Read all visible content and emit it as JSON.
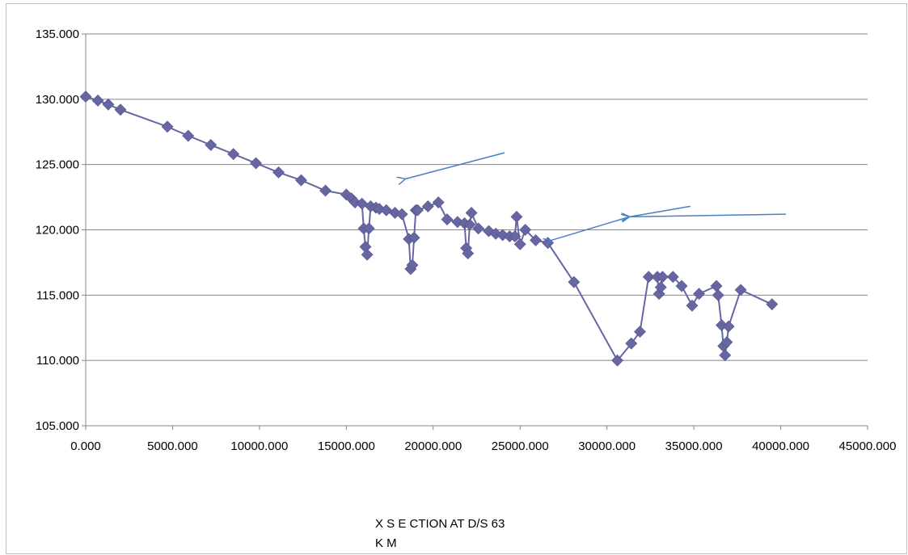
{
  "chart_data": {
    "type": "scatter",
    "title": "",
    "xlabel_lines": [
      "X S E CTION AT D/S 63",
      "K M"
    ],
    "ylabel": "",
    "xlim": [
      0,
      45000
    ],
    "ylim": [
      105,
      135
    ],
    "xticks": [
      "0.000",
      "5000.000",
      "10000.000",
      "15000.000",
      "20000.000",
      "25000.000",
      "30000.000",
      "35000.000",
      "40000.000",
      "45000.000"
    ],
    "yticks": [
      "105.000",
      "110.000",
      "115.000",
      "120.000",
      "125.000",
      "130.000",
      "135.000"
    ],
    "grid": "horizontal",
    "legend": "none",
    "colors": {
      "series": "#6666a3",
      "arrow": "#4a7fc1",
      "grid": "#868686"
    },
    "series": [
      {
        "x": [
          0,
          700,
          1300,
          2000,
          4700,
          5900,
          7200,
          8500,
          9800,
          11100,
          12400,
          13800,
          15000,
          15300,
          15500,
          15900,
          16000,
          16100,
          16200,
          16300,
          16400,
          16700,
          16900,
          17300,
          17800,
          18200,
          18600,
          18700,
          18800,
          18900,
          19000,
          19100,
          19700,
          20300,
          20800,
          21400,
          21800,
          21900,
          22000,
          22100,
          22200,
          22600,
          23200,
          23600,
          24000,
          24400,
          24700,
          24800,
          25000,
          25300,
          25900,
          26600,
          28100,
          30600,
          31400,
          31900,
          32400,
          32900,
          33000,
          33100,
          33200,
          33800,
          34300,
          34900,
          35300,
          36300,
          36400,
          36600,
          36700,
          36800,
          36900,
          37000,
          37700,
          39500
        ],
        "y": [
          130.2,
          129.9,
          129.6,
          129.2,
          127.9,
          127.2,
          126.5,
          125.8,
          125.1,
          124.4,
          123.8,
          123.0,
          122.7,
          122.4,
          122.1,
          122.0,
          120.1,
          118.7,
          118.1,
          120.1,
          121.8,
          121.7,
          121.6,
          121.5,
          121.3,
          121.2,
          119.3,
          117.0,
          117.3,
          119.4,
          121.5,
          121.5,
          121.8,
          122.1,
          120.8,
          120.6,
          120.5,
          118.6,
          118.2,
          120.4,
          121.3,
          120.1,
          119.9,
          119.7,
          119.6,
          119.5,
          119.5,
          121.0,
          118.9,
          120.0,
          119.2,
          119.0,
          116.0,
          110.0,
          111.3,
          112.2,
          116.4,
          116.4,
          115.1,
          115.6,
          116.4,
          116.4,
          115.7,
          114.2,
          115.1,
          115.7,
          115.0,
          112.7,
          111.1,
          110.4,
          111.4,
          112.6,
          115.4,
          114.3
        ]
      }
    ],
    "annotations": [
      {
        "type": "arrow",
        "from": [
          24100,
          125.9
        ],
        "to": [
          18400,
          123.9
        ]
      },
      {
        "type": "arrow",
        "from": [
          34800,
          121.8
        ],
        "to": [
          31300,
          121.0
        ]
      },
      {
        "type": "arrow",
        "from": [
          40300,
          121.2
        ],
        "to": [
          31300,
          121.0
        ]
      },
      {
        "type": "arrow",
        "from": [
          31300,
          121.0
        ],
        "to": [
          26800,
          119.2
        ]
      }
    ]
  }
}
